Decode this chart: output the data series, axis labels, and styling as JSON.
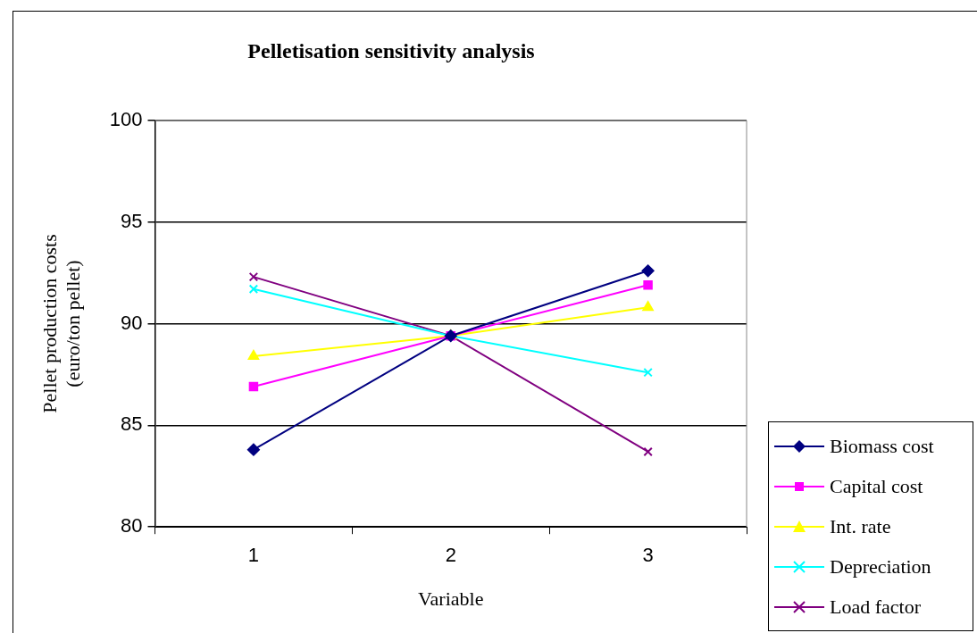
{
  "chart_data": {
    "type": "line",
    "title": "Pelletisation sensitivity analysis",
    "xlabel": "Variable",
    "ylabel": "Pellet production costs\n(euro/ton pellet)",
    "categories": [
      "1",
      "2",
      "3"
    ],
    "series": [
      {
        "name": "Biomass cost",
        "color": "#000080",
        "marker": "diamond",
        "values": [
          83.8,
          89.4,
          92.6
        ]
      },
      {
        "name": "Capital cost",
        "color": "#ff00ff",
        "marker": "square",
        "values": [
          86.9,
          89.4,
          91.9
        ]
      },
      {
        "name": "Int. rate",
        "color": "#ffff00",
        "marker": "triangle",
        "values": [
          88.4,
          89.4,
          90.8
        ]
      },
      {
        "name": "Depreciation",
        "color": "#00ffff",
        "marker": "cross",
        "values": [
          91.7,
          89.4,
          87.6
        ]
      },
      {
        "name": "Load factor",
        "color": "#800080",
        "marker": "cross",
        "values": [
          92.3,
          89.4,
          83.7
        ]
      }
    ],
    "ylim": [
      80,
      100
    ],
    "yticks": [
      80,
      85,
      90,
      95,
      100
    ],
    "grid": "y",
    "legend": "bottom right",
    "line_style": "solid"
  }
}
